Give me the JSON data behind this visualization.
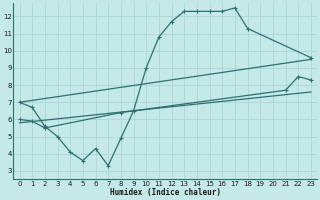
{
  "xlabel": "Humidex (Indice chaleur)",
  "bg_color": "#c5e8e8",
  "line_color": "#2d7070",
  "grid_color": "#b0d8d8",
  "xlim": [
    -0.5,
    23.5
  ],
  "ylim": [
    2.5,
    12.8
  ],
  "xticks": [
    0,
    1,
    2,
    3,
    4,
    5,
    6,
    7,
    8,
    9,
    10,
    11,
    12,
    13,
    14,
    15,
    16,
    17,
    18,
    19,
    20,
    21,
    22,
    23
  ],
  "yticks": [
    3,
    4,
    5,
    6,
    7,
    8,
    9,
    10,
    11,
    12
  ],
  "line1_x": [
    0,
    1,
    2,
    3,
    4,
    5,
    6,
    7,
    8,
    9,
    10,
    11,
    12,
    13,
    14,
    15,
    16,
    17,
    18,
    23
  ],
  "line1_y": [
    7.0,
    6.7,
    5.6,
    5.0,
    4.1,
    3.6,
    4.3,
    3.3,
    4.9,
    6.5,
    9.0,
    10.8,
    11.7,
    12.3,
    12.3,
    12.3,
    12.3,
    12.5,
    11.3,
    9.6
  ],
  "line2_x": [
    0,
    23
  ],
  "line2_y": [
    7.0,
    9.5
  ],
  "line3_x": [
    0,
    1,
    2,
    8,
    21,
    22,
    23
  ],
  "line3_y": [
    6.0,
    5.9,
    5.5,
    6.4,
    7.7,
    8.5,
    8.3
  ],
  "line4_x": [
    0,
    23
  ],
  "line4_y": [
    5.8,
    7.6
  ]
}
